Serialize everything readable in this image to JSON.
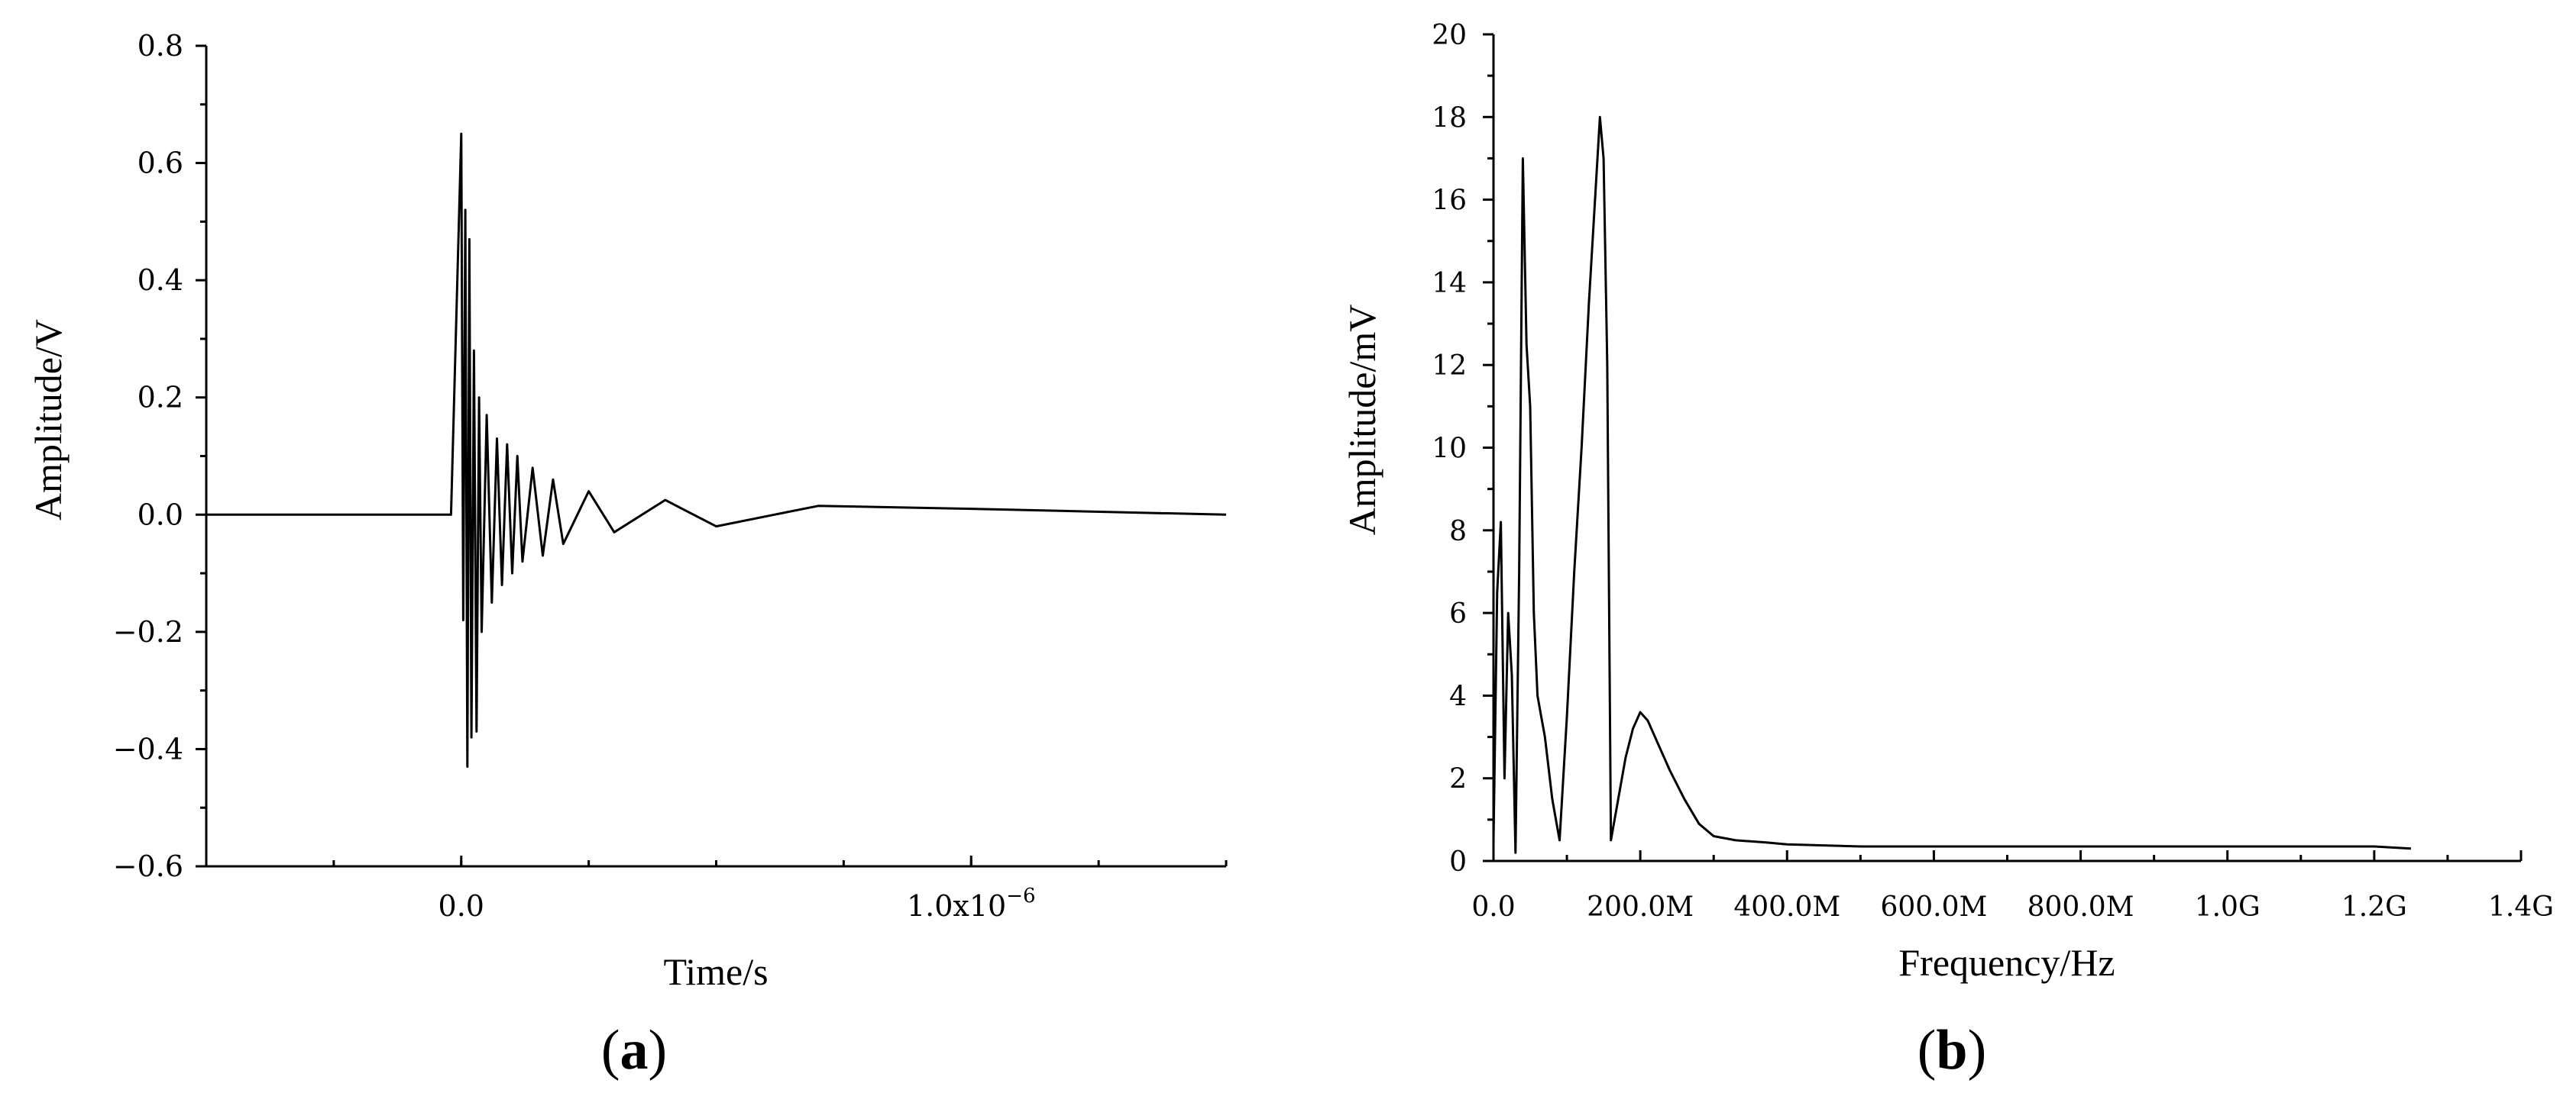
{
  "chart_data": [
    {
      "id": "a",
      "type": "line",
      "panel_label": "(a)",
      "panel_letter": "a",
      "xlabel": "Time/s",
      "ylabel": "Amplitude/V",
      "xlim": [
        -5e-07,
        1.5e-06
      ],
      "ylim": [
        -0.6,
        0.8
      ],
      "x_ticks": [
        {
          "value": 0.0,
          "label": "0.0"
        },
        {
          "value": 1e-06,
          "label": "1.0x10",
          "sup": "−6"
        }
      ],
      "y_ticks": [
        {
          "value": -0.6,
          "label": "−0.6"
        },
        {
          "value": -0.4,
          "label": "−0.4"
        },
        {
          "value": -0.2,
          "label": "−0.2"
        },
        {
          "value": 0.0,
          "label": "0.0"
        },
        {
          "value": 0.2,
          "label": "0.2"
        },
        {
          "value": 0.4,
          "label": "0.4"
        },
        {
          "value": 0.6,
          "label": "0.6"
        },
        {
          "value": 0.8,
          "label": "0.8"
        }
      ],
      "series": [
        {
          "x": [
            -5e-07,
            -2e-08,
            0.0,
            4e-09,
            8e-09,
            1.2e-08,
            1.6e-08,
            2e-08,
            2.5e-08,
            3e-08,
            3.5e-08,
            4e-08,
            5e-08,
            6e-08,
            7e-08,
            8e-08,
            9e-08,
            1e-07,
            1.1e-07,
            1.2e-07,
            1.4e-07,
            1.6e-07,
            1.8e-07,
            2e-07,
            2.5e-07,
            3e-07,
            4e-07,
            5e-07,
            7e-07,
            1e-06,
            1.5e-06
          ],
          "y": [
            0.0,
            0.0,
            0.65,
            -0.18,
            0.52,
            -0.43,
            0.47,
            -0.38,
            0.28,
            -0.37,
            0.2,
            -0.2,
            0.17,
            -0.15,
            0.13,
            -0.12,
            0.12,
            -0.1,
            0.1,
            -0.08,
            0.08,
            -0.07,
            0.06,
            -0.05,
            0.04,
            -0.03,
            0.025,
            -0.02,
            0.015,
            0.01,
            0.0
          ]
        }
      ]
    },
    {
      "id": "b",
      "type": "line",
      "panel_label": "(b)",
      "panel_letter": "b",
      "xlabel": "Frequency/Hz",
      "ylabel": "Amplitude/mV",
      "xlim": [
        0,
        1400000000
      ],
      "ylim": [
        0,
        20
      ],
      "x_ticks": [
        {
          "value": 0,
          "label": "0.0"
        },
        {
          "value": 200000000,
          "label": "200.0M"
        },
        {
          "value": 400000000,
          "label": "400.0M"
        },
        {
          "value": 600000000,
          "label": "600.0M"
        },
        {
          "value": 800000000,
          "label": "800.0M"
        },
        {
          "value": 1000000000,
          "label": "1.0G"
        },
        {
          "value": 1200000000,
          "label": "1.2G"
        },
        {
          "value": 1400000000,
          "label": "1.4G"
        }
      ],
      "y_ticks": [
        {
          "value": 0,
          "label": "0"
        },
        {
          "value": 2,
          "label": "2"
        },
        {
          "value": 4,
          "label": "4"
        },
        {
          "value": 6,
          "label": "6"
        },
        {
          "value": 8,
          "label": "8"
        },
        {
          "value": 10,
          "label": "10"
        },
        {
          "value": 12,
          "label": "12"
        },
        {
          "value": 14,
          "label": "14"
        },
        {
          "value": 16,
          "label": "16"
        },
        {
          "value": 18,
          "label": "18"
        },
        {
          "value": 20,
          "label": "20"
        }
      ],
      "series": [
        {
          "x": [
            0,
            5000000,
            10000000,
            15000000,
            20000000,
            25000000,
            30000000,
            35000000,
            40000000,
            45000000,
            50000000,
            55000000,
            60000000,
            65000000,
            70000000,
            80000000,
            90000000,
            100000000,
            110000000,
            120000000,
            130000000,
            140000000,
            145000000,
            150000000,
            155000000,
            160000000,
            170000000,
            180000000,
            190000000,
            200000000,
            210000000,
            220000000,
            240000000,
            260000000,
            280000000,
            300000000,
            330000000,
            370000000,
            400000000,
            500000000,
            600000000,
            700000000,
            800000000,
            900000000,
            1000000000,
            1100000000,
            1200000000,
            1250000000
          ],
          "y": [
            0.5,
            6.5,
            8.2,
            2.0,
            6.0,
            4.5,
            0.2,
            7.0,
            17.0,
            12.5,
            11.0,
            6.0,
            4.0,
            3.5,
            3.0,
            1.5,
            0.5,
            3.5,
            7.0,
            10.0,
            13.5,
            16.5,
            18.0,
            17.0,
            12.0,
            0.5,
            1.5,
            2.5,
            3.2,
            3.6,
            3.4,
            3.0,
            2.2,
            1.5,
            0.9,
            0.6,
            0.5,
            0.45,
            0.4,
            0.35,
            0.35,
            0.35,
            0.35,
            0.35,
            0.35,
            0.35,
            0.35,
            0.3
          ]
        }
      ]
    }
  ]
}
